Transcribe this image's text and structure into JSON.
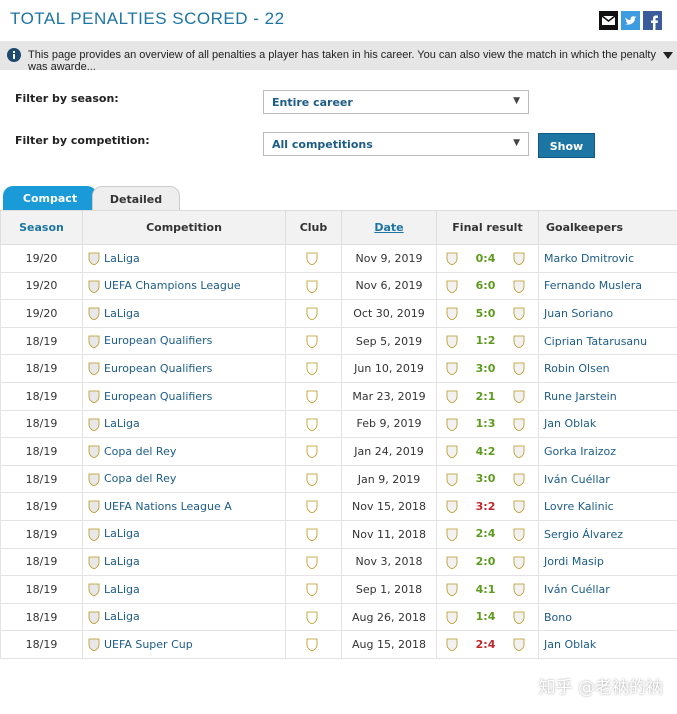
{
  "header": {
    "title": "TOTAL PENALTIES SCORED - 22"
  },
  "info": "This page provides an overview of all penalties a player has taken in his career. You can also view the match in which the penalty was awarde...",
  "filters": [
    {
      "label": "Filter by season:",
      "value": "Entire career"
    },
    {
      "label": "Filter by competition:",
      "value": "All competitions"
    }
  ],
  "button": "Show",
  "tabs": [
    "Compact",
    "Detailed"
  ],
  "table": {
    "columns": [
      "Season",
      "Competition",
      "Club",
      "Date",
      "Final result",
      "Goalkeepers"
    ],
    "rows": [
      {
        "season": "19/20",
        "competition": "LaLiga",
        "date": "Nov 9, 2019",
        "result": "0:4",
        "goalkeeper": "Marko Dmitrovic",
        "result_color": "#5d9a1e"
      },
      {
        "season": "19/20",
        "competition": "UEFA Champions League",
        "date": "Nov 6, 2019",
        "result": "6:0",
        "goalkeeper": "Fernando Muslera",
        "result_color": "#5d9a1e"
      },
      {
        "season": "19/20",
        "competition": "LaLiga",
        "date": "Oct 30, 2019",
        "result": "5:0",
        "goalkeeper": "Juan Soriano",
        "result_color": "#5d9a1e"
      },
      {
        "season": "18/19",
        "competition": "European Qualifiers",
        "date": "Sep 5, 2019",
        "result": "1:2",
        "goalkeeper": "Ciprian Tatarusanu",
        "result_color": "#5d9a1e"
      },
      {
        "season": "18/19",
        "competition": "European Qualifiers",
        "date": "Jun 10, 2019",
        "result": "3:0",
        "goalkeeper": "Robin Olsen",
        "result_color": "#5d9a1e"
      },
      {
        "season": "18/19",
        "competition": "European Qualifiers",
        "date": "Mar 23, 2019",
        "result": "2:1",
        "goalkeeper": "Rune Jarstein",
        "result_color": "#5d9a1e"
      },
      {
        "season": "18/19",
        "competition": "LaLiga",
        "date": "Feb 9, 2019",
        "result": "1:3",
        "goalkeeper": "Jan Oblak",
        "result_color": "#5d9a1e"
      },
      {
        "season": "18/19",
        "competition": "Copa del Rey",
        "date": "Jan 24, 2019",
        "result": "4:2",
        "goalkeeper": "Gorka Iraizoz",
        "result_color": "#5d9a1e"
      },
      {
        "season": "18/19",
        "competition": "Copa del Rey",
        "date": "Jan 9, 2019",
        "result": "3:0",
        "goalkeeper": "Iván Cuéllar",
        "result_color": "#5d9a1e"
      },
      {
        "season": "18/19",
        "competition": "UEFA Nations League A",
        "date": "Nov 15, 2018",
        "result": "3:2",
        "goalkeeper": "Lovre Kalinic",
        "result_color": "#c0282d"
      },
      {
        "season": "18/19",
        "competition": "LaLiga",
        "date": "Nov 11, 2018",
        "result": "2:4",
        "goalkeeper": "Sergio Álvarez",
        "result_color": "#5d9a1e"
      },
      {
        "season": "18/19",
        "competition": "LaLiga",
        "date": "Nov 3, 2018",
        "result": "2:0",
        "goalkeeper": "Jordi Masip",
        "result_color": "#5d9a1e"
      },
      {
        "season": "18/19",
        "competition": "LaLiga",
        "date": "Sep 1, 2018",
        "result": "4:1",
        "goalkeeper": "Iván Cuéllar",
        "result_color": "#5d9a1e"
      },
      {
        "season": "18/19",
        "competition": "LaLiga",
        "date": "Aug 26, 2018",
        "result": "1:4",
        "goalkeeper": "Bono",
        "result_color": "#5d9a1e"
      },
      {
        "season": "18/19",
        "competition": "UEFA Super Cup",
        "date": "Aug 15, 2018",
        "result": "2:4",
        "goalkeeper": "Jan Oblak",
        "result_color": "#c0282d"
      }
    ]
  },
  "watermark": "知乎 @老衲的衲"
}
